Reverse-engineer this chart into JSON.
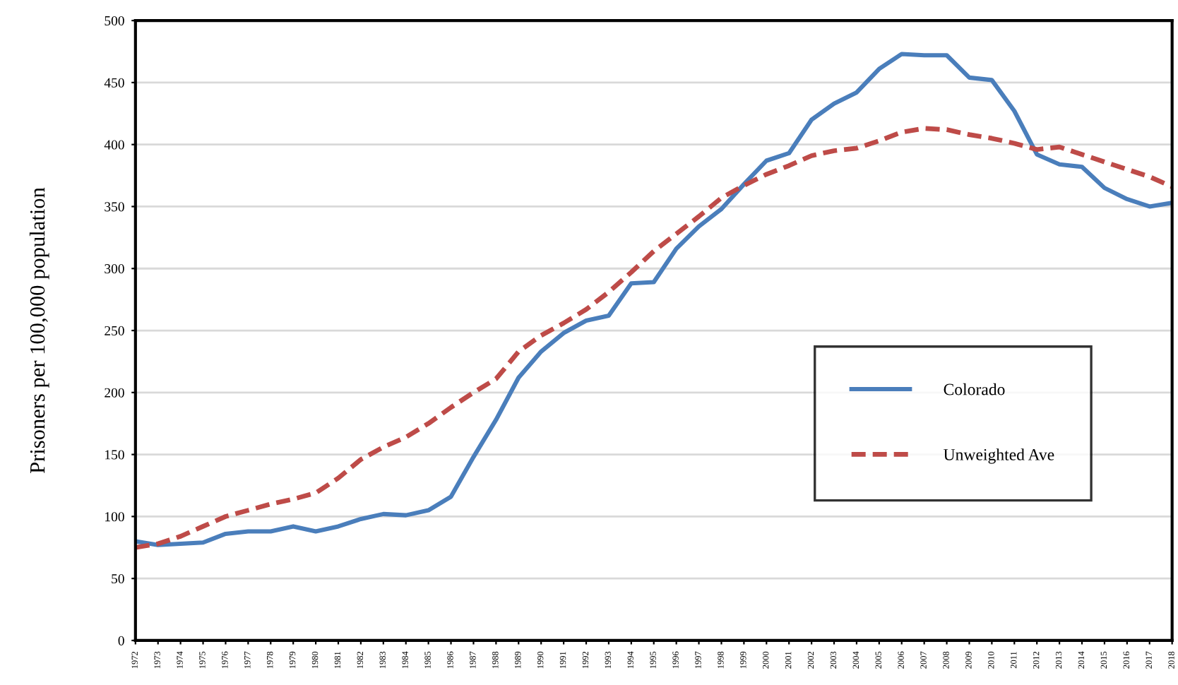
{
  "chart_data": {
    "type": "line",
    "ylabel": "Prisoners per 100,000 population",
    "categories": [
      "1972",
      "1973",
      "1974",
      "1975",
      "1976",
      "1977",
      "1978",
      "1979",
      "1980",
      "1981",
      "1982",
      "1983",
      "1984",
      "1985",
      "1986",
      "1987",
      "1988",
      "1989",
      "1990",
      "1991",
      "1992",
      "1993",
      "1994",
      "1995",
      "1996",
      "1997",
      "1998",
      "1999",
      "2000",
      "2001",
      "2002",
      "2003",
      "2004",
      "2005",
      "2006",
      "2007",
      "2008",
      "2009",
      "2010",
      "2011",
      "2012",
      "2013",
      "2014",
      "2015",
      "2016",
      "2017",
      "2018"
    ],
    "series": [
      {
        "name": "Colorado",
        "color": "#4a7ebb",
        "line_style": "solid",
        "values": [
          80,
          77,
          78,
          79,
          86,
          88,
          88,
          92,
          88,
          92,
          98,
          102,
          101,
          105,
          116,
          148,
          178,
          212,
          233,
          248,
          258,
          262,
          288,
          289,
          316,
          334,
          348,
          368,
          387,
          393,
          420,
          433,
          442,
          461,
          473,
          472,
          472,
          454,
          452,
          427,
          392,
          384,
          382,
          365,
          356,
          350,
          353
        ]
      },
      {
        "name": "Unweighted Ave",
        "color": "#be4b48",
        "line_style": "dashed",
        "values": [
          75,
          78,
          84,
          92,
          100,
          105,
          110,
          114,
          119,
          131,
          146,
          156,
          164,
          175,
          188,
          200,
          211,
          233,
          246,
          256,
          267,
          281,
          297,
          314,
          328,
          342,
          357,
          367,
          376,
          383,
          391,
          395,
          397,
          403,
          410,
          413,
          412,
          408,
          405,
          401,
          396,
          398,
          392,
          386,
          380,
          374,
          366
        ]
      }
    ],
    "ylim": [
      0,
      500
    ],
    "yticks": [
      0,
      50,
      100,
      150,
      200,
      250,
      300,
      350,
      400,
      450,
      500
    ],
    "grid": "y",
    "legend": "center right",
    "marker": "none"
  }
}
